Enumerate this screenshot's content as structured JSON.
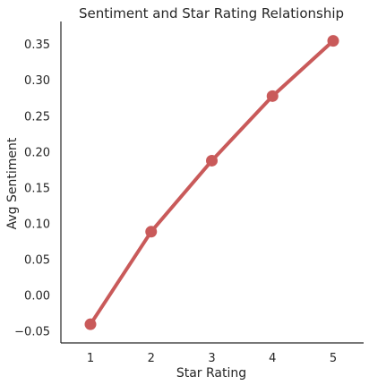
{
  "chart_data": {
    "type": "line",
    "title": "Sentiment and Star Rating Relationship",
    "xlabel": "Star Rating",
    "ylabel": "Avg Sentiment",
    "categories": [
      "1",
      "2",
      "3",
      "4",
      "5"
    ],
    "series": [
      {
        "values": [
          -0.04,
          0.089,
          0.188,
          0.278,
          0.355
        ]
      }
    ],
    "ylim": [
      -0.066,
      0.382
    ],
    "yticks": [
      -0.05,
      0.0,
      0.05,
      0.1,
      0.15,
      0.2,
      0.25,
      0.3,
      0.35
    ],
    "ytick_labels": [
      "−0.05",
      "0.00",
      "0.05",
      "0.10",
      "0.15",
      "0.20",
      "0.25",
      "0.30",
      "0.35"
    ],
    "grid": false,
    "color": "#c95a5a"
  }
}
